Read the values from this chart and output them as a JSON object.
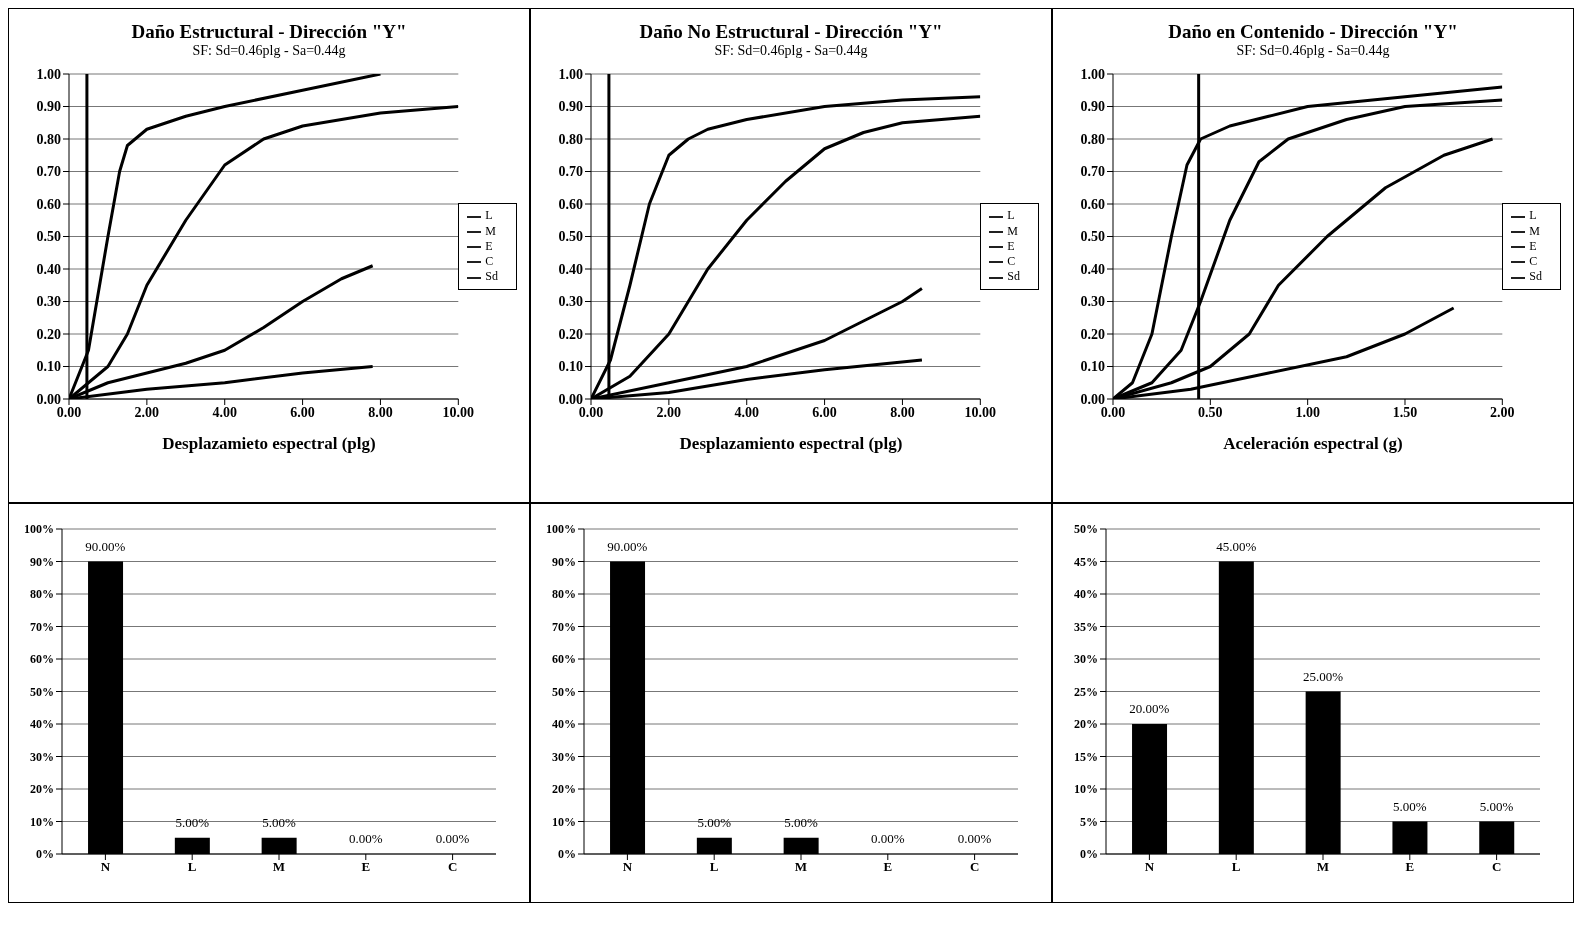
{
  "chart_data": [
    {
      "type": "line",
      "title": "Daño Estructural - Dirección \"Y\"",
      "subtitle": "SF: Sd=0.46plg - Sa=0.44g",
      "xlabel": "Desplazamieto espectral (plg)",
      "xlim": [
        0,
        10
      ],
      "xticks": [
        {
          "value": 0,
          "label": "0.00"
        },
        {
          "value": 2,
          "label": "2.00"
        },
        {
          "value": 4,
          "label": "4.00"
        },
        {
          "value": 6,
          "label": "6.00"
        },
        {
          "value": 8,
          "label": "8.00"
        },
        {
          "value": 10,
          "label": "10.00"
        }
      ],
      "ylim": [
        0,
        1
      ],
      "yticks": [
        {
          "value": 0,
          "label": "0.00"
        },
        {
          "value": 0.1,
          "label": "0.10"
        },
        {
          "value": 0.2,
          "label": "0.20"
        },
        {
          "value": 0.3,
          "label": "0.30"
        },
        {
          "value": 0.4,
          "label": "0.40"
        },
        {
          "value": 0.5,
          "label": "0.50"
        },
        {
          "value": 0.6,
          "label": "0.60"
        },
        {
          "value": 0.7,
          "label": "0.70"
        },
        {
          "value": 0.8,
          "label": "0.80"
        },
        {
          "value": 0.9,
          "label": "0.90"
        },
        {
          "value": 1,
          "label": "1.00"
        }
      ],
      "grid": "y",
      "legend": "right",
      "series": [
        {
          "name": "L",
          "color": "#000000",
          "x": [
            0,
            0.5,
            1,
            1.3,
            1.5,
            2,
            3,
            4,
            6,
            8
          ],
          "values": [
            0,
            0.15,
            0.5,
            0.7,
            0.78,
            0.83,
            0.87,
            0.9,
            0.95,
            1.0
          ]
        },
        {
          "name": "M",
          "color": "#000000",
          "x": [
            0,
            1,
            1.5,
            2,
            3,
            4,
            5,
            6,
            8,
            10
          ],
          "values": [
            0,
            0.1,
            0.2,
            0.35,
            0.55,
            0.72,
            0.8,
            0.84,
            0.88,
            0.9
          ]
        },
        {
          "name": "E",
          "color": "#000000",
          "x": [
            0,
            1,
            2,
            3,
            4,
            5,
            6,
            7,
            7.8
          ],
          "values": [
            0,
            0.05,
            0.08,
            0.11,
            0.15,
            0.22,
            0.3,
            0.37,
            0.41
          ]
        },
        {
          "name": "C",
          "color": "#000000",
          "x": [
            0,
            2,
            4,
            6,
            7.8
          ],
          "values": [
            0,
            0.03,
            0.05,
            0.08,
            0.1
          ]
        },
        {
          "name": "Sd",
          "color": "#000000",
          "x": [
            0.46,
            0.46
          ],
          "values": [
            0,
            1
          ]
        }
      ]
    },
    {
      "type": "line",
      "title": "Daño No Estructural - Dirección \"Y\"",
      "subtitle": "SF: Sd=0.46plg - Sa=0.44g",
      "xlabel": "Desplazamiento espectral (plg)",
      "xlim": [
        0,
        10
      ],
      "xticks": [
        {
          "value": 0,
          "label": "0.00"
        },
        {
          "value": 2,
          "label": "2.00"
        },
        {
          "value": 4,
          "label": "4.00"
        },
        {
          "value": 6,
          "label": "6.00"
        },
        {
          "value": 8,
          "label": "8.00"
        },
        {
          "value": 10,
          "label": "10.00"
        }
      ],
      "ylim": [
        0,
        1
      ],
      "yticks": [
        {
          "value": 0,
          "label": "0.00"
        },
        {
          "value": 0.1,
          "label": "0.10"
        },
        {
          "value": 0.2,
          "label": "0.20"
        },
        {
          "value": 0.3,
          "label": "0.30"
        },
        {
          "value": 0.4,
          "label": "0.40"
        },
        {
          "value": 0.5,
          "label": "0.50"
        },
        {
          "value": 0.6,
          "label": "0.60"
        },
        {
          "value": 0.7,
          "label": "0.70"
        },
        {
          "value": 0.8,
          "label": "0.80"
        },
        {
          "value": 0.9,
          "label": "0.90"
        },
        {
          "value": 1,
          "label": "1.00"
        }
      ],
      "grid": "y",
      "legend": "right",
      "series": [
        {
          "name": "L",
          "color": "#000000",
          "x": [
            0,
            0.5,
            1,
            1.5,
            2,
            2.5,
            3,
            4,
            6,
            8,
            10
          ],
          "values": [
            0,
            0.12,
            0.35,
            0.6,
            0.75,
            0.8,
            0.83,
            0.86,
            0.9,
            0.92,
            0.93
          ]
        },
        {
          "name": "M",
          "color": "#000000",
          "x": [
            0,
            1,
            2,
            3,
            4,
            5,
            6,
            7,
            8,
            10
          ],
          "values": [
            0,
            0.07,
            0.2,
            0.4,
            0.55,
            0.67,
            0.77,
            0.82,
            0.85,
            0.87
          ]
        },
        {
          "name": "E",
          "color": "#000000",
          "x": [
            0,
            2,
            4,
            6,
            7,
            8,
            8.5
          ],
          "values": [
            0,
            0.05,
            0.1,
            0.18,
            0.24,
            0.3,
            0.34
          ]
        },
        {
          "name": "C",
          "color": "#000000",
          "x": [
            0,
            2,
            4,
            6,
            8.5
          ],
          "values": [
            0,
            0.02,
            0.06,
            0.09,
            0.12
          ]
        },
        {
          "name": "Sd",
          "color": "#000000",
          "x": [
            0.46,
            0.46
          ],
          "values": [
            0,
            1
          ]
        }
      ]
    },
    {
      "type": "line",
      "title": "Daño en Contenido - Dirección \"Y\"",
      "subtitle": "SF: Sd=0.46plg - Sa=0.44g",
      "xlabel": "Aceleración espectral (g)",
      "xlim": [
        0,
        2
      ],
      "xticks": [
        {
          "value": 0,
          "label": "0.00"
        },
        {
          "value": 0.5,
          "label": "0.50"
        },
        {
          "value": 1,
          "label": "1.00"
        },
        {
          "value": 1.5,
          "label": "1.50"
        },
        {
          "value": 2,
          "label": "2.00"
        }
      ],
      "ylim": [
        0,
        1
      ],
      "yticks": [
        {
          "value": 0,
          "label": "0.00"
        },
        {
          "value": 0.1,
          "label": "0.10"
        },
        {
          "value": 0.2,
          "label": "0.20"
        },
        {
          "value": 0.3,
          "label": "0.30"
        },
        {
          "value": 0.4,
          "label": "0.40"
        },
        {
          "value": 0.5,
          "label": "0.50"
        },
        {
          "value": 0.6,
          "label": "0.60"
        },
        {
          "value": 0.7,
          "label": "0.70"
        },
        {
          "value": 0.8,
          "label": "0.80"
        },
        {
          "value": 0.9,
          "label": "0.90"
        },
        {
          "value": 1,
          "label": "1.00"
        }
      ],
      "grid": "y",
      "legend": "right",
      "series": [
        {
          "name": "L",
          "color": "#000000",
          "x": [
            0,
            0.1,
            0.2,
            0.3,
            0.38,
            0.45,
            0.6,
            0.8,
            1.0,
            1.5,
            2.0
          ],
          "values": [
            0,
            0.05,
            0.2,
            0.5,
            0.72,
            0.8,
            0.84,
            0.87,
            0.9,
            0.93,
            0.96
          ]
        },
        {
          "name": "M",
          "color": "#000000",
          "x": [
            0,
            0.2,
            0.35,
            0.45,
            0.6,
            0.75,
            0.9,
            1.2,
            1.5,
            2.0
          ],
          "values": [
            0,
            0.05,
            0.15,
            0.3,
            0.55,
            0.73,
            0.8,
            0.86,
            0.9,
            0.92
          ]
        },
        {
          "name": "E",
          "color": "#000000",
          "x": [
            0,
            0.3,
            0.5,
            0.7,
            0.85,
            1.1,
            1.4,
            1.7,
            1.95
          ],
          "values": [
            0,
            0.05,
            0.1,
            0.2,
            0.35,
            0.5,
            0.65,
            0.75,
            0.8
          ]
        },
        {
          "name": "C",
          "color": "#000000",
          "x": [
            0,
            0.4,
            0.8,
            1.2,
            1.5,
            1.75
          ],
          "values": [
            0,
            0.03,
            0.08,
            0.13,
            0.2,
            0.28
          ]
        },
        {
          "name": "Sd",
          "color": "#000000",
          "x": [
            0.44,
            0.44
          ],
          "values": [
            0,
            1
          ]
        }
      ]
    },
    {
      "type": "bar",
      "categories": [
        "N",
        "L",
        "M",
        "E",
        "C"
      ],
      "values": [
        90,
        5,
        5,
        0,
        0
      ],
      "value_labels": [
        "90.00%",
        "5.00%",
        "5.00%",
        "0.00%",
        "0.00%"
      ],
      "color": "#000000",
      "ylim": [
        0,
        100
      ],
      "yticks": [
        {
          "value": 0,
          "label": "0%"
        },
        {
          "value": 10,
          "label": "10%"
        },
        {
          "value": 20,
          "label": "20%"
        },
        {
          "value": 30,
          "label": "30%"
        },
        {
          "value": 40,
          "label": "40%"
        },
        {
          "value": 50,
          "label": "50%"
        },
        {
          "value": 60,
          "label": "60%"
        },
        {
          "value": 70,
          "label": "70%"
        },
        {
          "value": 80,
          "label": "80%"
        },
        {
          "value": 90,
          "label": "90%"
        },
        {
          "value": 100,
          "label": "100%"
        }
      ],
      "grid": "y"
    },
    {
      "type": "bar",
      "categories": [
        "N",
        "L",
        "M",
        "E",
        "C"
      ],
      "values": [
        90,
        5,
        5,
        0,
        0
      ],
      "value_labels": [
        "90.00%",
        "5.00%",
        "5.00%",
        "0.00%",
        "0.00%"
      ],
      "color": "#000000",
      "ylim": [
        0,
        100
      ],
      "yticks": [
        {
          "value": 0,
          "label": "0%"
        },
        {
          "value": 10,
          "label": "10%"
        },
        {
          "value": 20,
          "label": "20%"
        },
        {
          "value": 30,
          "label": "30%"
        },
        {
          "value": 40,
          "label": "40%"
        },
        {
          "value": 50,
          "label": "50%"
        },
        {
          "value": 60,
          "label": "60%"
        },
        {
          "value": 70,
          "label": "70%"
        },
        {
          "value": 80,
          "label": "80%"
        },
        {
          "value": 90,
          "label": "90%"
        },
        {
          "value": 100,
          "label": "100%"
        }
      ],
      "grid": "y"
    },
    {
      "type": "bar",
      "categories": [
        "N",
        "L",
        "M",
        "E",
        "C"
      ],
      "values": [
        20,
        45,
        25,
        5,
        5
      ],
      "value_labels": [
        "20.00%",
        "45.00%",
        "25.00%",
        "5.00%",
        "5.00%"
      ],
      "color": "#000000",
      "ylim": [
        0,
        50
      ],
      "yticks": [
        {
          "value": 0,
          "label": "0%"
        },
        {
          "value": 5,
          "label": "5%"
        },
        {
          "value": 10,
          "label": "10%"
        },
        {
          "value": 15,
          "label": "15%"
        },
        {
          "value": 20,
          "label": "20%"
        },
        {
          "value": 25,
          "label": "25%"
        },
        {
          "value": 30,
          "label": "30%"
        },
        {
          "value": 35,
          "label": "35%"
        },
        {
          "value": 40,
          "label": "40%"
        },
        {
          "value": 45,
          "label": "45%"
        },
        {
          "value": 50,
          "label": "50%"
        }
      ],
      "grid": "y"
    }
  ]
}
